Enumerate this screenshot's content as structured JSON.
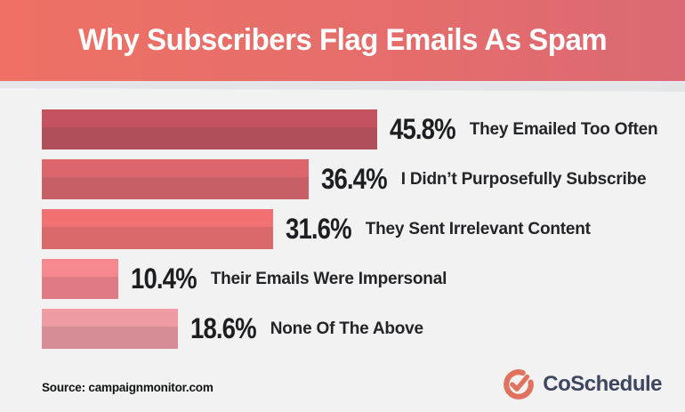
{
  "header": {
    "bg_left": "#ee7164",
    "bg_right": "#dc6973",
    "title_color": "#ffffff"
  },
  "chart_data": {
    "type": "bar",
    "orientation": "horizontal",
    "title": "Why Subscribers Flag Emails As Spam",
    "categories": [
      "They Emailed Too Often",
      "I Didn’t Purposefully Subscribe",
      "They Sent Irrelevant Content",
      "Their Emails Were Impersonal",
      "None Of The Above"
    ],
    "values": [
      45.8,
      36.4,
      31.6,
      10.4,
      18.6
    ],
    "value_labels": [
      "45.8%",
      "36.4%",
      "31.6%",
      "10.4%",
      "18.6%"
    ],
    "value_label_position": "right-of-bar",
    "xlim": [
      0,
      50
    ],
    "grid": false,
    "legend": false,
    "bar_colors": [
      {
        "top": "#c5525f",
        "bottom": "#b04f59"
      },
      {
        "top": "#dd666c",
        "bottom": "#c75f66"
      },
      {
        "top": "#f17173",
        "bottom": "#da696c"
      },
      {
        "top": "#f5898f",
        "bottom": "#df7b82"
      },
      {
        "top": "#ee9ba3",
        "bottom": "#d78d96"
      }
    ]
  },
  "footer": {
    "source": "Source: campaignmonitor.com",
    "brand": "CoSchedule",
    "brand_text_color": "#3e4560",
    "brand_mark_color": "#e0735e"
  }
}
